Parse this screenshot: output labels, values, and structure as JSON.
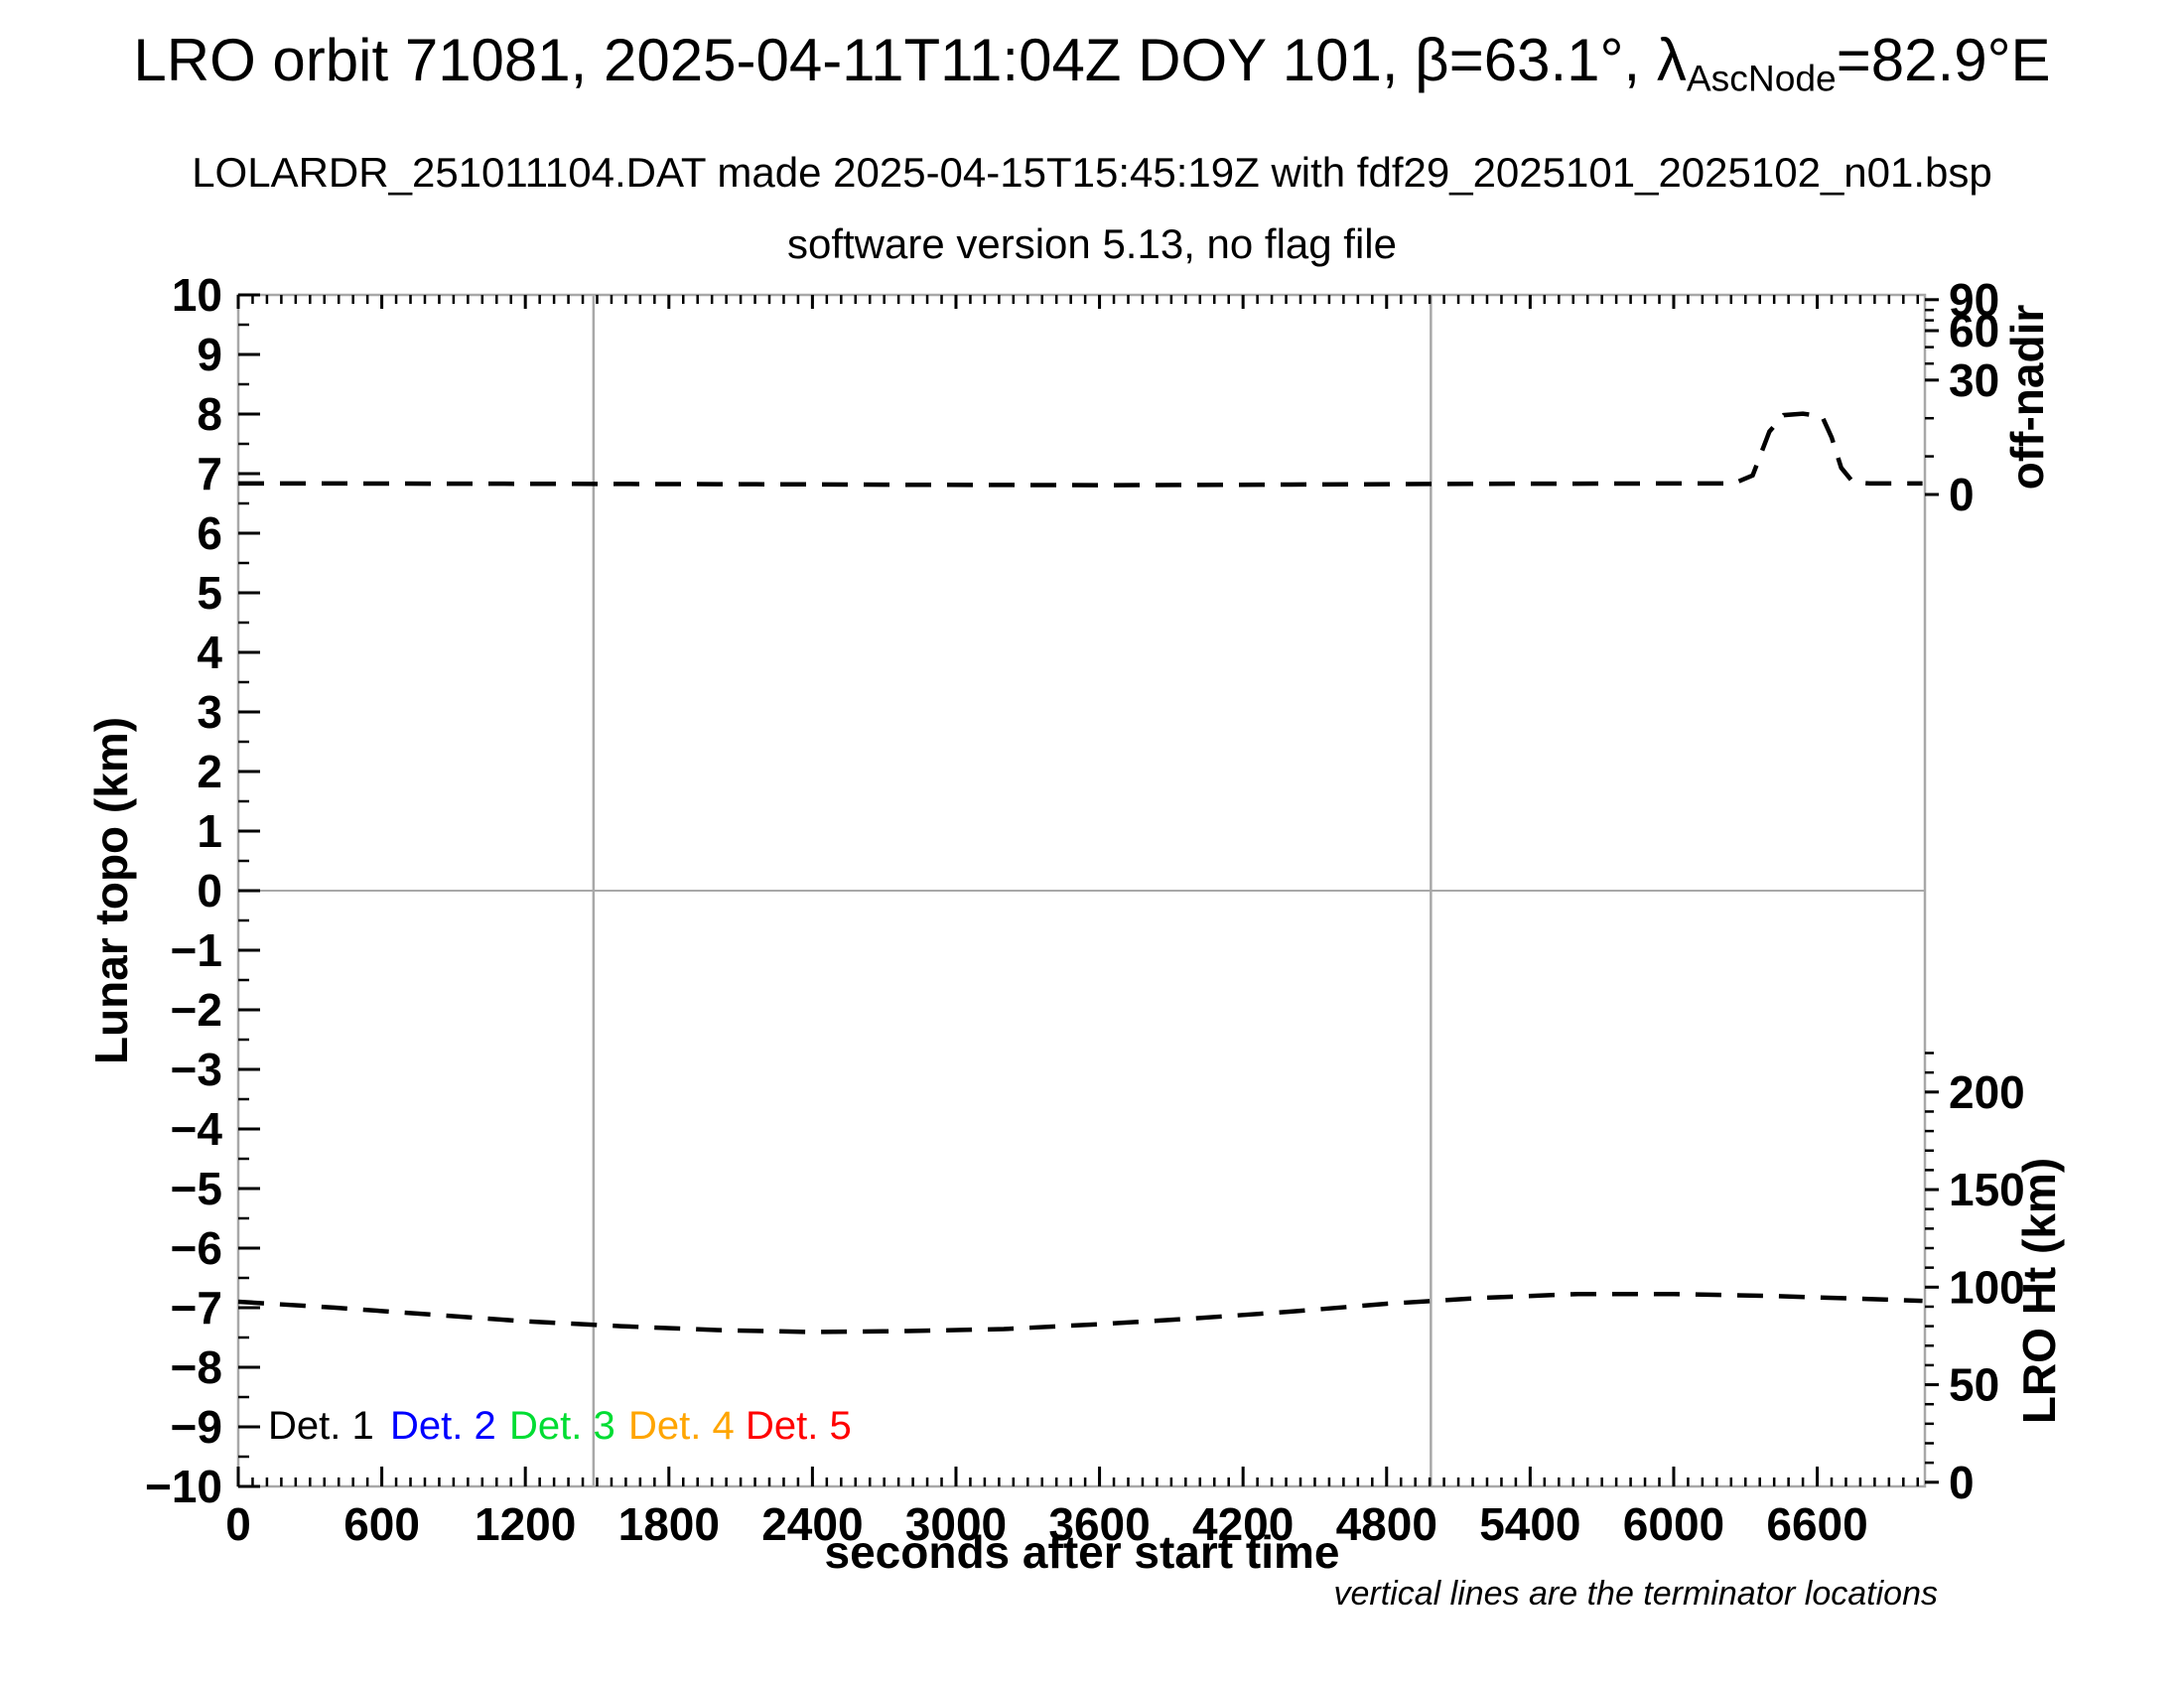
{
  "title": {
    "part1": "LRO orbit 71081, 2025-04-11T11:04Z DOY 101, β=63.1°, λ",
    "subscript": "AscNode",
    "part2": "=82.9°E"
  },
  "subtitle_line1": "LOLARDR_251011104.DAT made 2025-04-15T15:45:19Z with fdf29_2025101_2025102_n01.bsp",
  "subtitle_line2": "software version 5.13, no flag file",
  "footnote": "vertical lines are the terminator locations",
  "legend": {
    "items": [
      {
        "label": "Det. 1",
        "color": "#000000"
      },
      {
        "label": "Det. 2",
        "color": "#0000ff"
      },
      {
        "label": "Det. 3",
        "color": "#00dd33"
      },
      {
        "label": "Det. 4",
        "color": "#ffa500"
      },
      {
        "label": "Det. 5",
        "color": "#ff0000"
      }
    ]
  },
  "chart_data": {
    "type": "line",
    "title": "LRO orbit 71081, 2025-04-11T11:04Z DOY 101, β=63.1°, λAscNode=82.9°E",
    "frame_color": "#a8a8a8",
    "x_axis": {
      "label": "seconds after start time",
      "min": 0,
      "max": 7050,
      "major_ticks": [
        0,
        600,
        1200,
        1800,
        2400,
        3000,
        3600,
        4200,
        4800,
        5400,
        6000,
        6600
      ],
      "major_tick_labels": [
        "0",
        "600",
        "1200",
        "1800",
        "2400",
        "3000",
        "3600",
        "4200",
        "4800",
        "5400",
        "6000",
        "6600"
      ],
      "minor_tick_step": 60
    },
    "y_axis_left": {
      "label": "Lunar topo (km)",
      "min": -10,
      "max": 10,
      "major_tick_step": 1,
      "minor_tick_step": 0.5,
      "major_tick_values": [
        10,
        9,
        8,
        7,
        6,
        5,
        4,
        3,
        2,
        1,
        0,
        -1,
        -2,
        -3,
        -4,
        -5,
        -6,
        -7,
        -8,
        -9,
        -10
      ],
      "major_tick_labels": [
        "10",
        "9",
        "8",
        "7",
        "6",
        "5",
        "4",
        "3",
        "2",
        "1",
        "0",
        "−1",
        "−2",
        "−3",
        "−4",
        "−5",
        "−6",
        "−7",
        "−8",
        "−9",
        "−10"
      ]
    },
    "y_axis_right_top": {
      "label": "off-nadir",
      "tick_degs": [
        90,
        60,
        30,
        0
      ],
      "tick_labels": [
        "90",
        "60",
        "30",
        "0"
      ],
      "minor_tick_degs": [
        10,
        20,
        40,
        50,
        70,
        80
      ],
      "deg_to_topo_anchors": [
        [
          0,
          6.65
        ],
        [
          30,
          8.57
        ],
        [
          60,
          9.4
        ],
        [
          90,
          9.92
        ]
      ]
    },
    "y_axis_right_bottom": {
      "label": "LRO Ht (km)",
      "tick_kms": [
        200,
        150,
        100,
        50,
        0
      ],
      "tick_labels": [
        "200",
        "150",
        "100",
        "50",
        "0"
      ],
      "minor_tick_step_km": 10,
      "minor_tick_max_km": 220,
      "km_to_topo_slope": 0.03275,
      "km_to_topo_intercept": -9.93
    },
    "zero_gridline_topo": 0,
    "terminator_lines_s": [
      1485,
      4985
    ],
    "series": [
      {
        "name": "off-nadir angle",
        "unit": "deg",
        "axis": "right-top",
        "color": "#000000",
        "dash": [
          26,
          16
        ],
        "points": [
          [
            0,
            2.9
          ],
          [
            400,
            2.9
          ],
          [
            800,
            2.85
          ],
          [
            1200,
            2.8
          ],
          [
            1600,
            2.75
          ],
          [
            2000,
            2.7
          ],
          [
            2400,
            2.65
          ],
          [
            2800,
            2.55
          ],
          [
            3200,
            2.5
          ],
          [
            3600,
            2.45
          ],
          [
            4000,
            2.5
          ],
          [
            4400,
            2.6
          ],
          [
            4800,
            2.7
          ],
          [
            5200,
            2.8
          ],
          [
            5600,
            2.85
          ],
          [
            6000,
            2.9
          ],
          [
            6250,
            2.9
          ],
          [
            6330,
            5
          ],
          [
            6400,
            16.5
          ],
          [
            6460,
            20.8
          ],
          [
            6540,
            21.2
          ],
          [
            6620,
            20.5
          ],
          [
            6660,
            15
          ],
          [
            6700,
            7
          ],
          [
            6750,
            3.2
          ],
          [
            6820,
            2.9
          ],
          [
            7040,
            2.9
          ]
        ]
      },
      {
        "name": "LRO height",
        "unit": "km",
        "axis": "right-bottom",
        "color": "#000000",
        "dash": [
          26,
          16
        ],
        "points": [
          [
            0,
            92.5
          ],
          [
            400,
            89.5
          ],
          [
            800,
            86
          ],
          [
            1200,
            82.5
          ],
          [
            1600,
            80
          ],
          [
            2000,
            78
          ],
          [
            2400,
            77
          ],
          [
            2800,
            77.5
          ],
          [
            3200,
            78.5
          ],
          [
            3600,
            81
          ],
          [
            4000,
            84
          ],
          [
            4400,
            87.5
          ],
          [
            4800,
            91.5
          ],
          [
            5200,
            94.5
          ],
          [
            5600,
            96.5
          ],
          [
            6000,
            96.5
          ],
          [
            6400,
            95.5
          ],
          [
            6800,
            94
          ],
          [
            7040,
            93
          ]
        ]
      }
    ]
  }
}
